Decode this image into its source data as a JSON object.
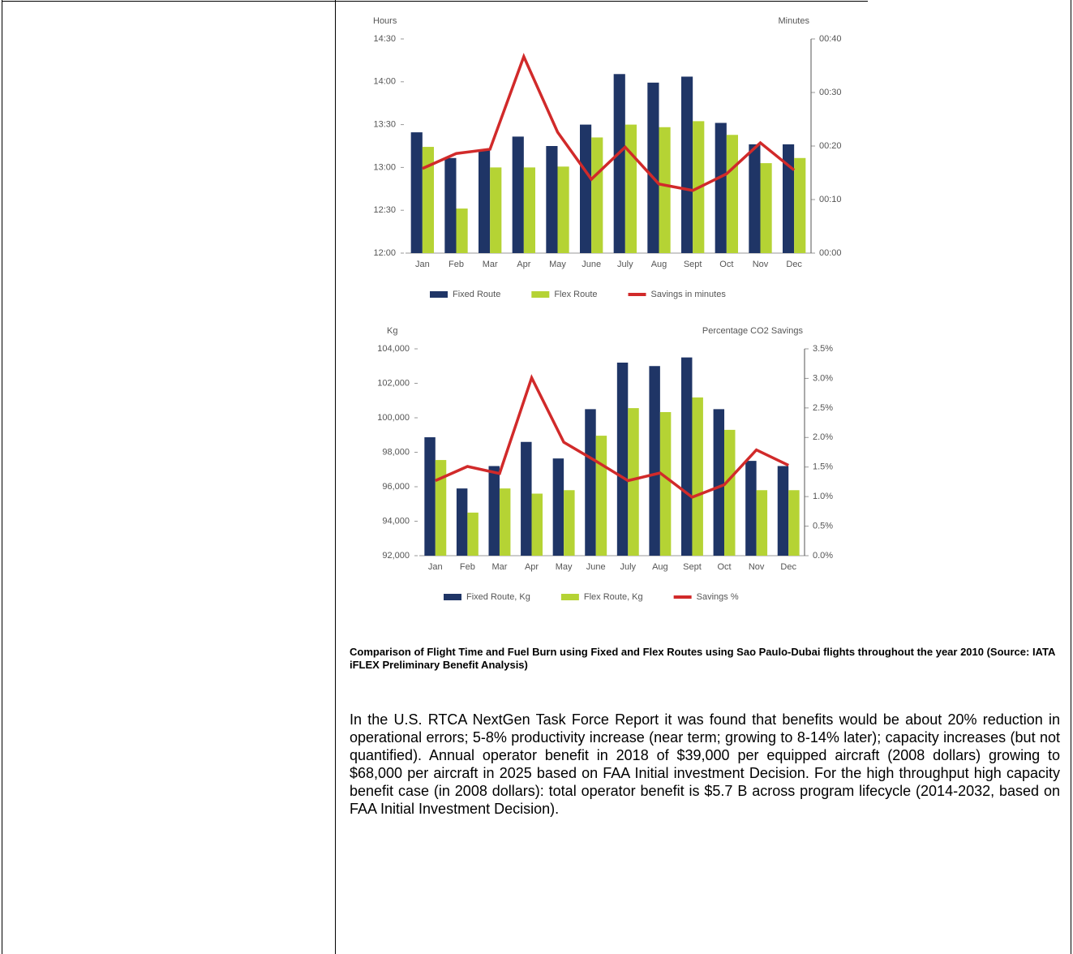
{
  "chart_data": [
    {
      "type": "bar",
      "y_label": "Hours",
      "y2_label": "Minutes",
      "categories": [
        "Jan",
        "Feb",
        "Mar",
        "Apr",
        "May",
        "June",
        "July",
        "Aug",
        "Sept",
        "Oct",
        "Nov",
        "Dec"
      ],
      "series": [
        {
          "name": "Fixed Route",
          "color": "#1f3566",
          "values": [
            13.41,
            13.11,
            13.2,
            13.36,
            13.25,
            13.5,
            14.09,
            13.99,
            14.06,
            13.52,
            13.27,
            13.27
          ]
        },
        {
          "name": "Flex Route",
          "color": "#b5d334",
          "values": [
            13.24,
            12.52,
            13.0,
            13.0,
            13.01,
            13.35,
            13.5,
            13.47,
            13.54,
            13.38,
            13.05,
            13.11
          ]
        },
        {
          "name": "Savings in minutes",
          "color": "#d12a2a",
          "type": "line",
          "axis": "y2",
          "values": [
            15.8,
            18.6,
            19.4,
            36.7,
            22.6,
            13.8,
            19.8,
            12.9,
            11.7,
            14.8,
            20.6,
            15.5
          ]
        }
      ],
      "ylim": [
        12,
        14.5
      ],
      "yticks": [
        {
          "value": 12,
          "label": "12:00"
        },
        {
          "value": 12.5,
          "label": "12:30"
        },
        {
          "value": 13,
          "label": "13:00"
        },
        {
          "value": 13.5,
          "label": "13:30"
        },
        {
          "value": 14,
          "label": "14:00"
        },
        {
          "value": 14.5,
          "label": "14:30"
        }
      ],
      "y2lim": [
        0,
        40
      ],
      "y2ticks": [
        {
          "value": 0,
          "label": "00:00"
        },
        {
          "value": 10,
          "label": "00:10"
        },
        {
          "value": 20,
          "label": "00:20"
        },
        {
          "value": 30,
          "label": "00:30"
        },
        {
          "value": 40,
          "label": "00:40"
        }
      ],
      "legend": "bottom"
    },
    {
      "type": "bar",
      "y_label": "Kg",
      "y2_label": "Percentage CO2 Savings",
      "categories": [
        "Jan",
        "Feb",
        "Mar",
        "Apr",
        "May",
        "June",
        "July",
        "Aug",
        "Sept",
        "Oct",
        "Nov",
        "Dec"
      ],
      "series": [
        {
          "name": "Fixed Route, Kg",
          "color": "#1f3566",
          "values": [
            98870,
            95900,
            97200,
            98600,
            97640,
            100500,
            103200,
            103000,
            103500,
            100500,
            97500,
            97200
          ]
        },
        {
          "name": "Flex Route, Kg",
          "color": "#b5d334",
          "values": [
            97550,
            94500,
            95900,
            95600,
            95800,
            98960,
            100560,
            100330,
            101180,
            99300,
            95800,
            95800
          ]
        },
        {
          "name": "Savings %",
          "color": "#d12a2a",
          "type": "line",
          "axis": "y2",
          "values": [
            1.27,
            1.51,
            1.39,
            3.01,
            1.92,
            1.6,
            1.27,
            1.4,
            0.99,
            1.2,
            1.79,
            1.53
          ]
        }
      ],
      "ylim": [
        92000,
        104000
      ],
      "yticks": [
        {
          "value": 92000,
          "label": "92,000"
        },
        {
          "value": 94000,
          "label": "94,000"
        },
        {
          "value": 96000,
          "label": "96,000"
        },
        {
          "value": 98000,
          "label": "98,000"
        },
        {
          "value": 100000,
          "label": "100,000"
        },
        {
          "value": 102000,
          "label": "102,000"
        },
        {
          "value": 104000,
          "label": "104,000"
        }
      ],
      "y2lim": [
        0,
        3.5
      ],
      "y2ticks": [
        {
          "value": 0,
          "label": "0.0%"
        },
        {
          "value": 0.5,
          "label": "0.5%"
        },
        {
          "value": 1,
          "label": "1.0%"
        },
        {
          "value": 1.5,
          "label": "1.5%"
        },
        {
          "value": 2,
          "label": "2.0%"
        },
        {
          "value": 2.5,
          "label": "2.5%"
        },
        {
          "value": 3,
          "label": "3.0%"
        },
        {
          "value": 3.5,
          "label": "3.5%"
        }
      ],
      "legend": "bottom"
    }
  ],
  "caption": "Comparison of Flight Time and Fuel Burn using Fixed and Flex Routes using Sao Paulo-Dubai flights throughout the year 2010 (Source: IATA iFLEX Preliminary Benefit Analysis)",
  "body": "In the U.S. RTCA NextGen Task Force Report it was found that benefits would be about 20% reduction in operational errors; 5-8% productivity increase (near term; growing to 8-14% later); capacity increases (but not quantified).  Annual operator benefit in 2018 of $39,000 per equipped aircraft (2008 dollars) growing to $68,000 per aircraft in 2025 based on FAA Initial investment Decision. For the high throughput high capacity benefit case (in 2008 dollars):  total operator benefit is $5.7 B across program lifecycle (2014-2032, based on FAA Initial Investment Decision)."
}
